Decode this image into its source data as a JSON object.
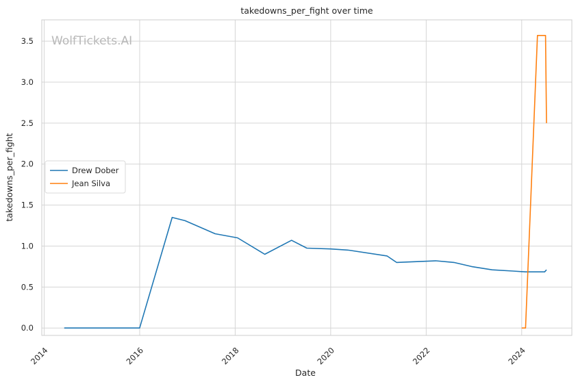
{
  "chart_data": {
    "type": "line",
    "title": "takedowns_per_fight over time",
    "xlabel": "Date",
    "ylabel": "takedowns_per_fight",
    "watermark": "WolfTickets.AI",
    "xlim": [
      2013.95,
      2025.05
    ],
    "ylim": [
      -0.09,
      3.76
    ],
    "x_ticks": [
      2014,
      2016,
      2018,
      2020,
      2022,
      2024
    ],
    "x_tick_labels": [
      "2014",
      "2016",
      "2018",
      "2020",
      "2022",
      "2024"
    ],
    "y_ticks": [
      0.0,
      0.5,
      1.0,
      1.5,
      2.0,
      2.5,
      3.0,
      3.5
    ],
    "y_tick_labels": [
      "0.0",
      "0.5",
      "1.0",
      "1.5",
      "2.0",
      "2.5",
      "3.0",
      "3.5"
    ],
    "grid": true,
    "legend_position": "center-left",
    "series": [
      {
        "name": "Drew Dober",
        "color": "#1f77b4",
        "x": [
          2014.42,
          2016.0,
          2016.68,
          2016.95,
          2017.58,
          2018.05,
          2018.62,
          2019.18,
          2019.5,
          2020.0,
          2020.38,
          2021.18,
          2021.38,
          2022.2,
          2022.58,
          2022.95,
          2023.38,
          2023.82,
          2024.08,
          2024.48,
          2024.52
        ],
        "y": [
          0.0,
          0.0,
          1.35,
          1.31,
          1.15,
          1.1,
          0.9,
          1.07,
          0.975,
          0.965,
          0.95,
          0.88,
          0.8,
          0.82,
          0.8,
          0.75,
          0.71,
          0.695,
          0.685,
          0.685,
          0.71
        ]
      },
      {
        "name": "Jean Silva",
        "color": "#ff7f0e",
        "x": [
          2024.0,
          2024.08,
          2024.33,
          2024.5,
          2024.52
        ],
        "y": [
          0.0,
          0.0,
          3.57,
          3.57,
          2.5
        ]
      }
    ]
  }
}
